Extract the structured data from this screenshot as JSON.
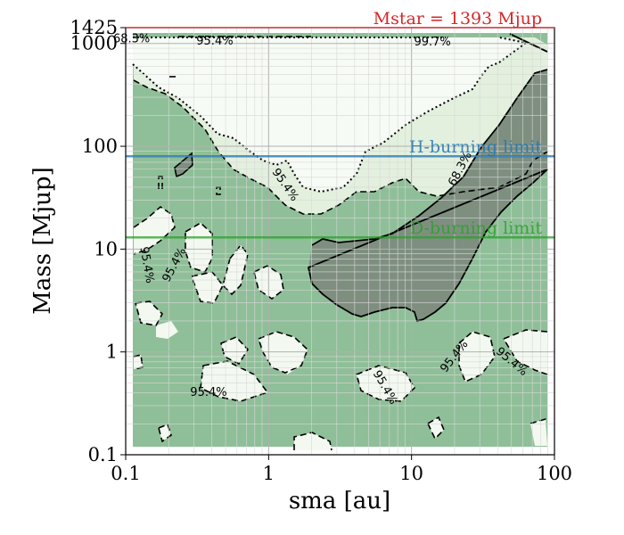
{
  "chart_data": {
    "type": "contour",
    "title": "Mstar = 1393 Mjup",
    "title_color": "#d62728",
    "xlabel": "sma [au]",
    "ylabel": "Mass [Mjup]",
    "xscale": "log",
    "yscale": "log",
    "xlim": [
      0.1,
      100
    ],
    "ylim": [
      0.1,
      1425
    ],
    "x_ticks": [
      {
        "value": 0.1,
        "label": "0.1"
      },
      {
        "value": 1,
        "label": "1"
      },
      {
        "value": 10,
        "label": "10"
      },
      {
        "value": 100,
        "label": "100"
      }
    ],
    "y_ticks": [
      {
        "value": 0.1,
        "label": "0.1"
      },
      {
        "value": 1,
        "label": "1"
      },
      {
        "value": 10,
        "label": "10"
      },
      {
        "value": 100,
        "label": "100"
      },
      {
        "value": 1000,
        "label": "1000"
      },
      {
        "value": 1425,
        "label": "1425"
      }
    ],
    "grid": true,
    "contour_levels": [
      "68.3%",
      "95.4%",
      "99.7%"
    ],
    "reference_lines": [
      {
        "name": "H-burning limit",
        "mass": 80,
        "color": "#1f77b4"
      },
      {
        "name": "D-burning limit",
        "mass": 13,
        "color": "#2ca02c"
      }
    ],
    "contour_labels": [
      {
        "text": "68.3%",
        "sma": 0.11,
        "mass": 1100,
        "angle": 0
      },
      {
        "text": "95.4%",
        "sma": 0.42,
        "mass": 1050,
        "angle": 0
      },
      {
        "text": "99.7%",
        "sma": 14,
        "mass": 1020,
        "angle": 0
      },
      {
        "text": "68.3%",
        "sma": 22,
        "mass": 60,
        "angle": -62
      },
      {
        "text": "95.4%",
        "sma": 1.3,
        "mass": 42,
        "angle": 55
      },
      {
        "text": "95.4%",
        "sma": 0.14,
        "mass": 7,
        "angle": 80
      },
      {
        "text": "95.4%",
        "sma": 0.22,
        "mass": 7,
        "angle": -62
      },
      {
        "text": "95.4%",
        "sma": 0.38,
        "mass": 0.4,
        "angle": 0
      },
      {
        "text": "95.4%",
        "sma": 6.5,
        "mass": 0.45,
        "angle": 60
      },
      {
        "text": "95.4%",
        "sma": 20,
        "mass": 0.9,
        "angle": -52
      },
      {
        "text": "95.4%",
        "sma": 50,
        "mass": 0.8,
        "angle": 40
      }
    ]
  }
}
